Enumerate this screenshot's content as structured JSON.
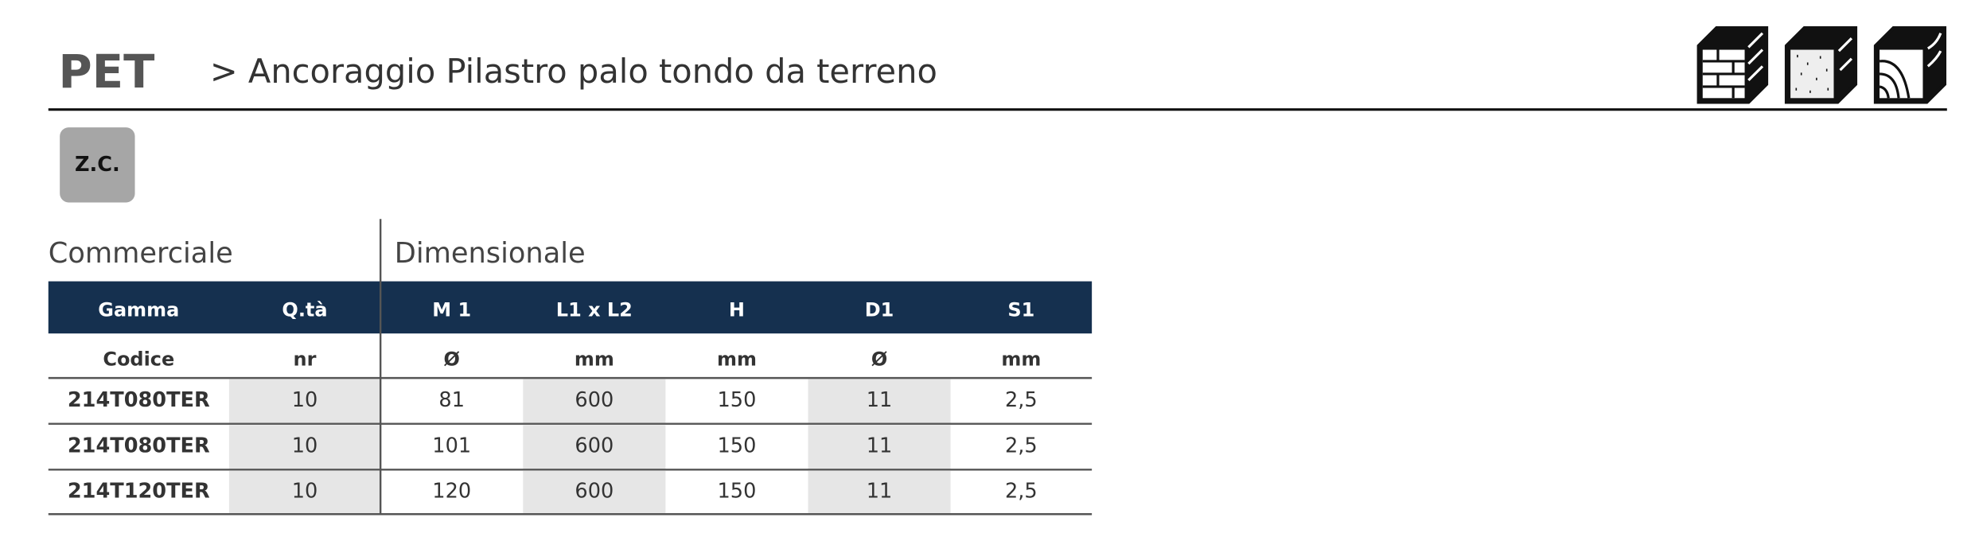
{
  "header": {
    "code": "PET",
    "title": "> Ancoraggio Pilastro palo tondo da terreno"
  },
  "badge": "Z.C.",
  "table": {
    "groups": [
      "Commerciale",
      "Dimensionale"
    ],
    "columns": [
      "Gamma",
      "Q.tà",
      "M 1",
      "L1 x L2",
      "H",
      "D1",
      "S1"
    ],
    "units": [
      "Codice",
      "nr",
      "Ø",
      "mm",
      "mm",
      "Ø",
      "mm"
    ],
    "rows": [
      [
        "214T080TER",
        "10",
        "81",
        "600",
        "150",
        "11",
        "2,5"
      ],
      [
        "214T080TER",
        "10",
        "101",
        "600",
        "150",
        "11",
        "2,5"
      ],
      [
        "214T120TER",
        "10",
        "120",
        "600",
        "150",
        "11",
        "2,5"
      ]
    ]
  }
}
